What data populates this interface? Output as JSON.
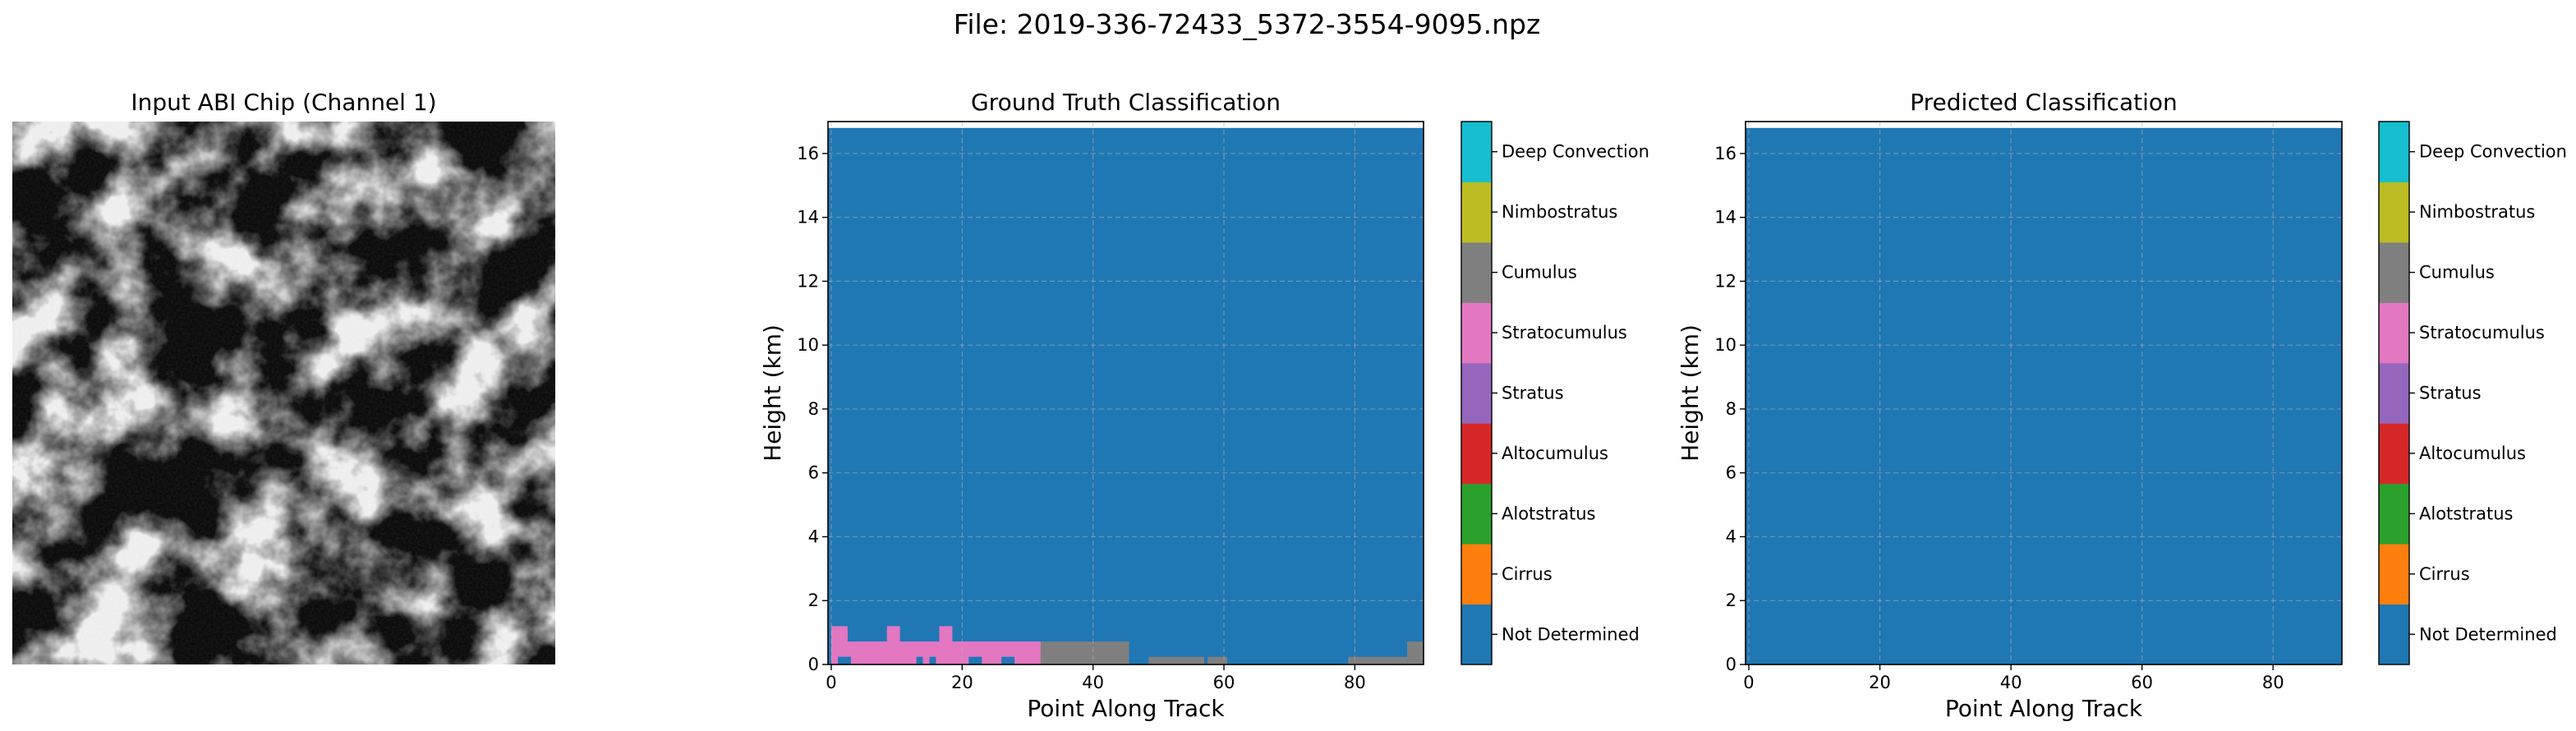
{
  "figure": {
    "suptitle": "File: 2019-336-72433_5372-3554-9095.npz"
  },
  "chart_data": [
    {
      "type": "image",
      "title": "Input ABI Chip (Channel 1)",
      "colormap": "gray",
      "description_level": "grayscale satellite reflectance chip"
    },
    {
      "type": "heatmap",
      "title": "Ground Truth Classification",
      "xlabel": "Point Along Track",
      "ylabel": "Height (km)",
      "xlim": [
        -0.5,
        90.5
      ],
      "ylim": [
        0,
        17
      ],
      "x_ticks": [
        0,
        20,
        40,
        60,
        80
      ],
      "y_ticks": [
        0,
        2,
        4,
        6,
        8,
        10,
        12,
        14,
        16
      ],
      "grid": true,
      "background_class": "Not Determined",
      "background_top_km": 16.8,
      "regions": [
        {
          "class": "Stratocumulus",
          "x": [
            0,
            32
          ],
          "y": [
            0,
            0.72
          ]
        },
        {
          "class": "Stratocumulus",
          "x": [
            0,
            2.5
          ],
          "y": [
            0.72,
            1.2
          ]
        },
        {
          "class": "Stratocumulus",
          "x": [
            8.5,
            10.5
          ],
          "y": [
            0.72,
            1.2
          ]
        },
        {
          "class": "Stratocumulus",
          "x": [
            16.5,
            18.5
          ],
          "y": [
            0.72,
            1.2
          ]
        },
        {
          "class": "Cumulus",
          "x": [
            32,
            45.5
          ],
          "y": [
            0,
            0.72
          ]
        },
        {
          "class": "Cumulus",
          "x": [
            48.5,
            57
          ],
          "y": [
            0,
            0.24
          ]
        },
        {
          "class": "Cumulus",
          "x": [
            57.5,
            60.5
          ],
          "y": [
            0,
            0.24
          ]
        },
        {
          "class": "Cumulus",
          "x": [
            79,
            88
          ],
          "y": [
            0,
            0.24
          ]
        },
        {
          "class": "Cumulus",
          "x": [
            88,
            90.5
          ],
          "y": [
            0,
            0.72
          ]
        },
        {
          "class": "Not Determined",
          "x": [
            1,
            3
          ],
          "y": [
            0,
            0.24
          ]
        },
        {
          "class": "Not Determined",
          "x": [
            13,
            14
          ],
          "y": [
            0,
            0.24
          ]
        },
        {
          "class": "Not Determined",
          "x": [
            15,
            16
          ],
          "y": [
            0,
            0.24
          ]
        },
        {
          "class": "Not Determined",
          "x": [
            21,
            23
          ],
          "y": [
            0,
            0.24
          ]
        },
        {
          "class": "Not Determined",
          "x": [
            26,
            28
          ],
          "y": [
            0,
            0.24
          ]
        }
      ]
    },
    {
      "type": "heatmap",
      "title": "Predicted Classification",
      "xlabel": "Point Along Track",
      "ylabel": "Height (km)",
      "xlim": [
        -0.5,
        90.5
      ],
      "ylim": [
        0,
        17
      ],
      "x_ticks": [
        0,
        20,
        40,
        60,
        80
      ],
      "y_ticks": [
        0,
        2,
        4,
        6,
        8,
        10,
        12,
        14,
        16
      ],
      "grid": true,
      "background_class": "Not Determined",
      "background_top_km": 16.8,
      "regions": []
    }
  ],
  "colorbar": {
    "classes": [
      {
        "label": "Not Determined",
        "color": "#1f77b4"
      },
      {
        "label": "Cirrus",
        "color": "#ff7f0e"
      },
      {
        "label": "Alotstratus",
        "color": "#2ca02c"
      },
      {
        "label": "Altocumulus",
        "color": "#d62728"
      },
      {
        "label": "Stratus",
        "color": "#9467bd"
      },
      {
        "label": "Stratocumulus",
        "color": "#e377c2"
      },
      {
        "label": "Cumulus",
        "color": "#7f7f7f"
      },
      {
        "label": "Nimbostratus",
        "color": "#bcbd22"
      },
      {
        "label": "Deep Convection",
        "color": "#17becf"
      }
    ]
  }
}
